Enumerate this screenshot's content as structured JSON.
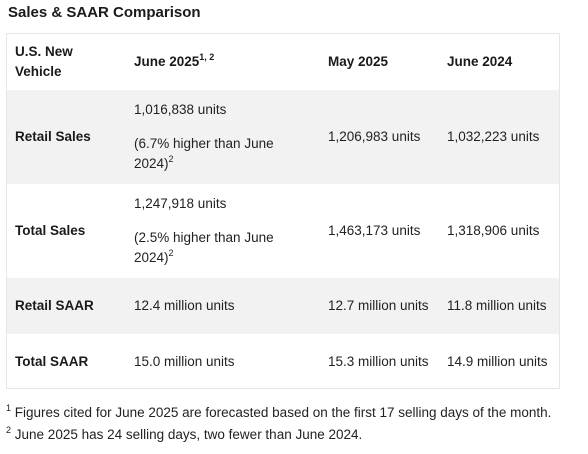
{
  "title": "Sales & SAAR Comparison",
  "table": {
    "headers": {
      "col1": "U.S. New Vehicle",
      "col2": "June 2025",
      "col2_sup": "1, 2",
      "col3": "May 2025",
      "col4": "June 2024"
    },
    "rows": [
      {
        "label": "Retail Sales",
        "june2025_value": "1,016,838 units",
        "june2025_note": "(6.7% higher than June 2024)",
        "june2025_note_sup": "2",
        "may2025": "1,206,983 units",
        "june2024": "1,032,223 units"
      },
      {
        "label": "Total Sales",
        "june2025_value": "1,247,918 units",
        "june2025_note": "(2.5% higher than June 2024)",
        "june2025_note_sup": "2",
        "may2025": "1,463,173 units",
        "june2024": "1,318,906 units"
      },
      {
        "label": "Retail SAAR",
        "june2025_value": "12.4 million units",
        "may2025": "12.7 million units",
        "june2024": "11.8 million units"
      },
      {
        "label": "Total SAAR",
        "june2025_value": "15.0 million units",
        "may2025": "15.3 million units",
        "june2024": "14.9 million units"
      }
    ]
  },
  "footnotes": [
    {
      "marker": "1",
      "text": "Figures cited for June 2025 are forecasted based on the first 17 selling days of the month."
    },
    {
      "marker": "2",
      "text": "June 2025 has 24 selling days, two fewer than June 2024."
    }
  ],
  "colors": {
    "shaded_row": "#f2f2f2",
    "border": "#e6e6e6",
    "text": "#222222"
  }
}
